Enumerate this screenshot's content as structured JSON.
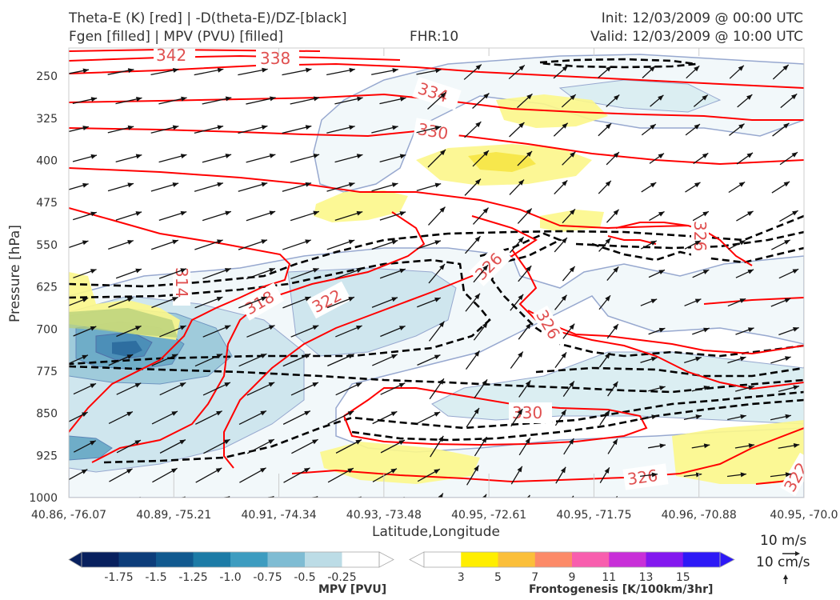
{
  "header": {
    "title_line1": "Theta-E (K) [red] | -D(theta-E)/DZ-[black]",
    "title_line2": "Fgen [filled] | MPV (PVU) [filled]",
    "fhr": "FHR:10",
    "init": "Init: 12/03/2009 @ 00:00 UTC",
    "valid": "Valid: 12/03/2009 @ 10:00 UTC"
  },
  "chart_data": {
    "type": "cross-section",
    "ylabel": "Pressure [hPa]",
    "xlabel": "Latitude,Longitude",
    "ylim": [
      1000,
      200
    ],
    "yticks": [
      250,
      325,
      400,
      475,
      550,
      625,
      700,
      775,
      850,
      925,
      1000
    ],
    "xticks": [
      "40.86, -76.07",
      "40.89, -75.21",
      "40.91, -74.34",
      "40.93, -73.48",
      "40.95, -72.61",
      "40.95, -71.75",
      "40.96, -70.88",
      "40.95, -70.0"
    ],
    "theta_e_contour_labels": [
      "342",
      "338",
      "334",
      "330",
      "326",
      "322",
      "318",
      "314",
      "326",
      "326",
      "330",
      "326",
      "322"
    ],
    "mpv_colorbar": {
      "title": "MPV [PVU]",
      "ticks": [
        "-1.75",
        "-1.5",
        "-1.25",
        "-1.0",
        "-0.75",
        "-0.5",
        "-0.25"
      ],
      "colors": [
        "#08205e",
        "#0d3d7a",
        "#11598f",
        "#1c7ba6",
        "#3d9cc0",
        "#7fbcd3",
        "#bcdce6",
        "#ffffff"
      ]
    },
    "fgen_colorbar": {
      "title": "Frontogenesis [K/100km/3hr]",
      "ticks": [
        "3",
        "5",
        "7",
        "9",
        "11",
        "13",
        "15"
      ],
      "colors": [
        "#ffffff",
        "#ffee00",
        "#fbbf3a",
        "#fc8a68",
        "#f85eae",
        "#c82fd8",
        "#8318ef",
        "#2d19f6"
      ]
    },
    "vector_key": {
      "horizontal": "10 m/s",
      "vertical": "10 cm/s"
    },
    "colors": {
      "theta_e": "#ff0000",
      "stability": "#000000",
      "mpv_outline": "#97a8cf"
    }
  }
}
